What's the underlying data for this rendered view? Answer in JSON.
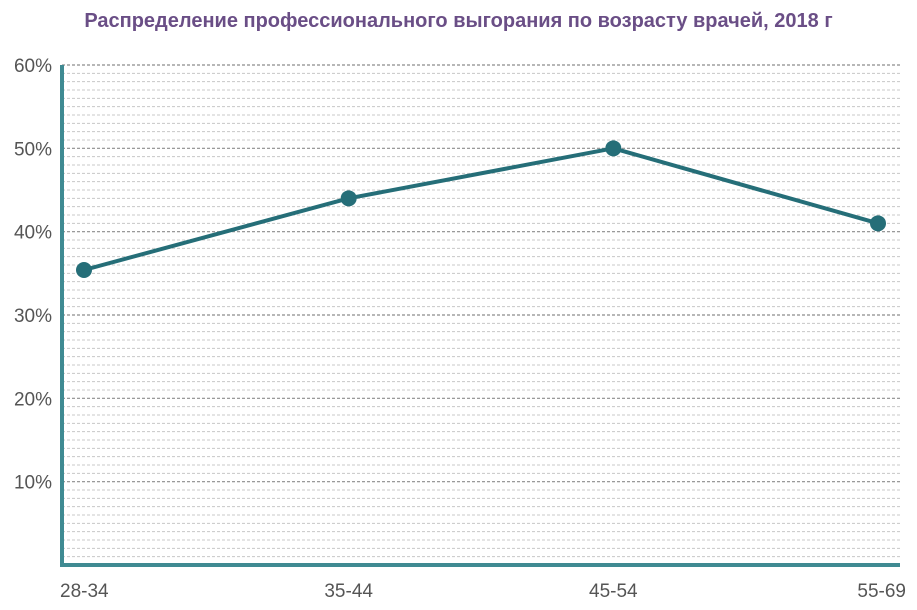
{
  "chart_data": {
    "type": "line",
    "title": "Распределение профессионального выгорания по возрасту врачей, 2018 г",
    "categories": [
      "28-34",
      "35-44",
      "45-54",
      "55-69"
    ],
    "values": [
      35.4,
      44.0,
      50.0,
      41.0
    ],
    "ylim": [
      0,
      60
    ],
    "yticks": [
      "10%",
      "20%",
      "30%",
      "40%",
      "50%",
      "60%"
    ],
    "ytick_values": [
      10,
      20,
      30,
      40,
      50,
      60
    ],
    "xlabel": "",
    "ylabel": "",
    "grid": true,
    "colors": {
      "line": "#256e78",
      "axis": "#3f8a92",
      "grid_major": "#8c8c8c",
      "grid_minor": "#c8c8c8",
      "title": "#6a4e86"
    }
  }
}
